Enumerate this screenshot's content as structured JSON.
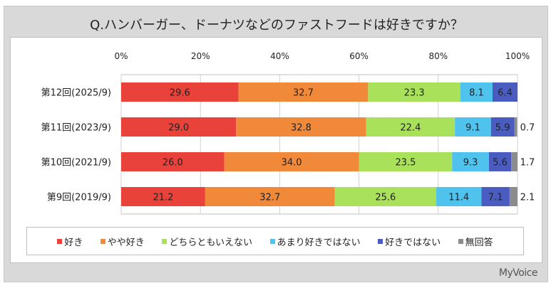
{
  "chart_data": {
    "type": "bar",
    "orientation": "horizontal-stacked-100",
    "title": "Q.ハンバーガー、ドーナツなどのファストフードは好きですか？",
    "categories": [
      "第12回(2025/9)",
      "第11回(2023/9)",
      "第10回(2021/9)",
      "第9回(2019/9)"
    ],
    "x_ticks": [
      "0%",
      "20%",
      "40%",
      "60%",
      "80%",
      "100%"
    ],
    "xlim": [
      0,
      100
    ],
    "legend_position": "bottom",
    "series": [
      {
        "name": "好き",
        "color": "#e8423a",
        "values": [
          29.6,
          29.0,
          26.0,
          21.2
        ]
      },
      {
        "name": "やや好き",
        "color": "#f08a3a",
        "values": [
          32.7,
          32.8,
          34.0,
          32.7
        ]
      },
      {
        "name": "どちらともいえない",
        "color": "#a9e25a",
        "values": [
          23.3,
          22.4,
          23.5,
          25.6
        ]
      },
      {
        "name": "あまり好きではない",
        "color": "#4fc3ee",
        "values": [
          8.1,
          9.1,
          9.3,
          11.4
        ]
      },
      {
        "name": "好きではない",
        "color": "#4a5cc0",
        "values": [
          6.4,
          5.9,
          5.6,
          7.1
        ]
      },
      {
        "name": "無回答",
        "color": "#8c8c8c",
        "values": [
          null,
          0.7,
          1.7,
          2.1
        ]
      }
    ]
  },
  "brand": "MyVoice"
}
